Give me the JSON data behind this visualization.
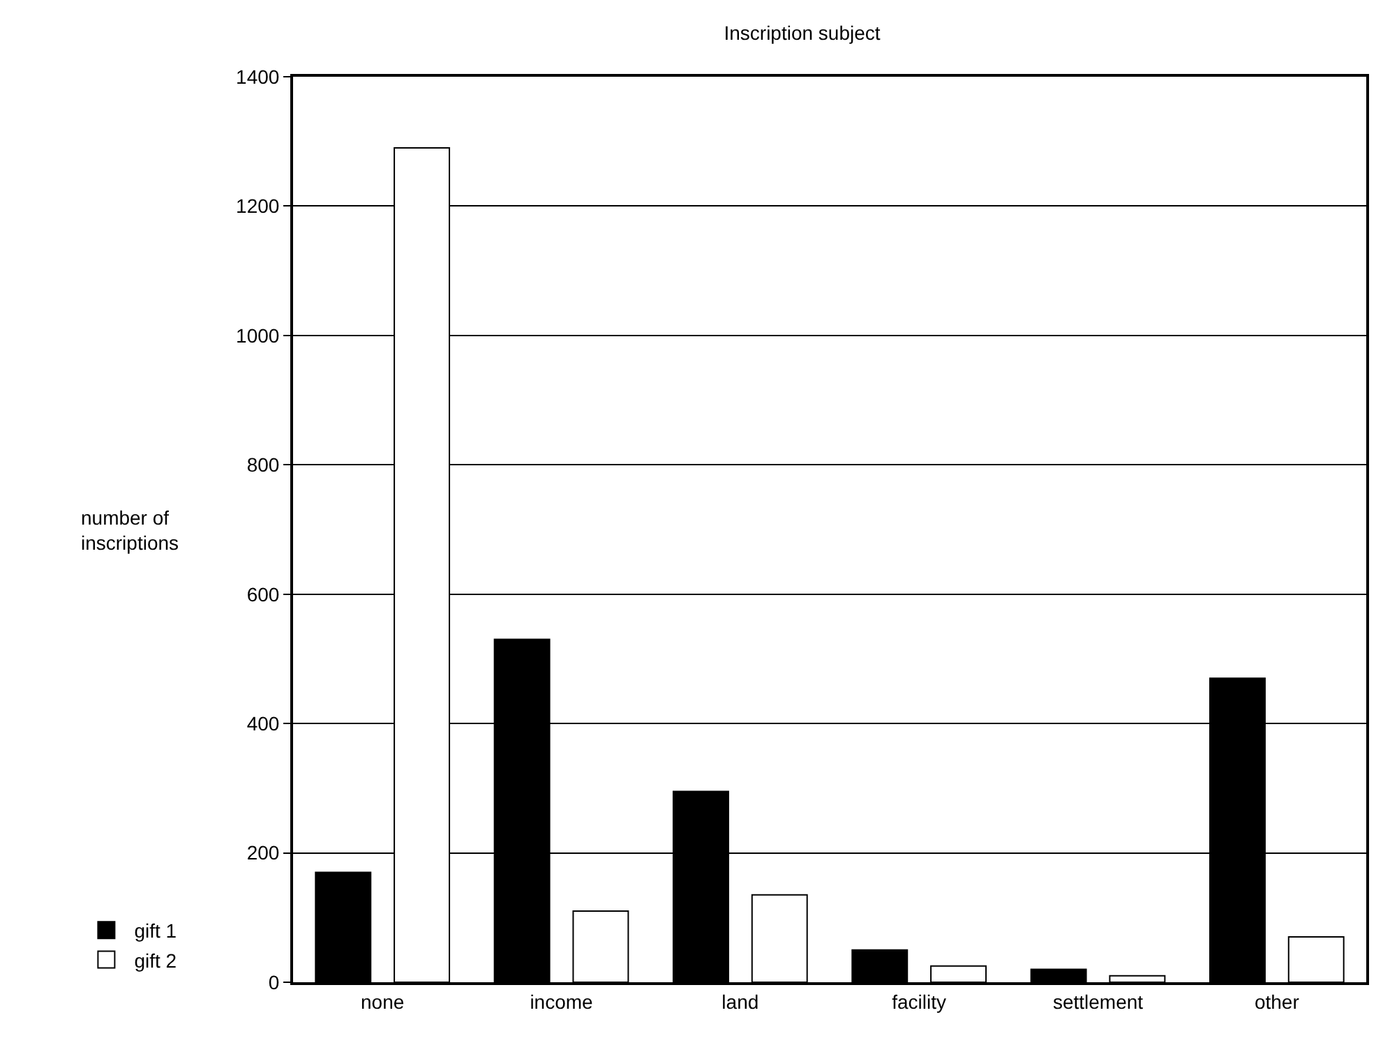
{
  "chart_data": {
    "type": "bar",
    "title": "Inscription subject",
    "ylabel": "number of inscriptions",
    "categories": [
      "none",
      "income",
      "land",
      "facility",
      "settlement",
      "other"
    ],
    "series": [
      {
        "name": "gift 1",
        "color": "#000000",
        "values": [
          170,
          530,
          295,
          50,
          20,
          470
        ]
      },
      {
        "name": "gift 2",
        "color": "#ffffff",
        "values": [
          1290,
          110,
          135,
          25,
          10,
          70
        ]
      }
    ],
    "ylim": [
      0,
      1400
    ],
    "yticks": [
      0,
      200,
      400,
      600,
      800,
      1000,
      1200,
      1400
    ],
    "grid": "y",
    "legend": "bottom left"
  }
}
